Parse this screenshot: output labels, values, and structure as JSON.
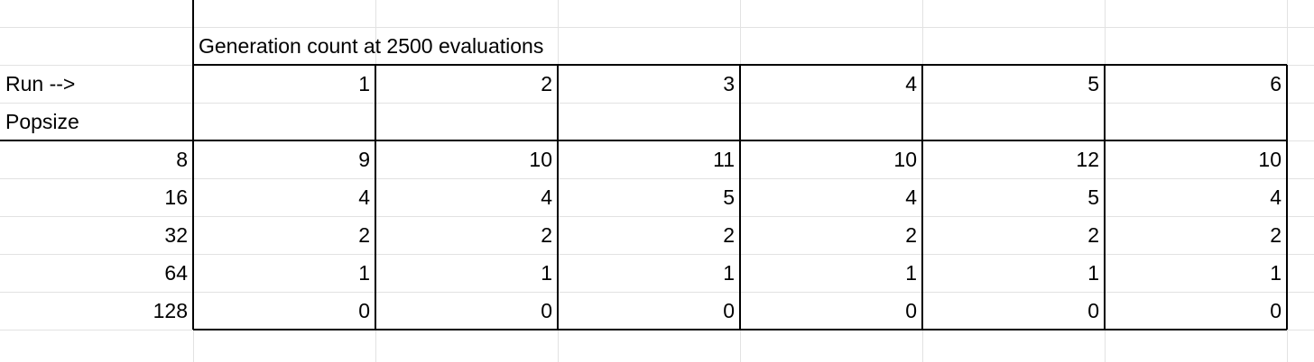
{
  "sheet": {
    "title_cell": "Generation count at 2500 evaluations",
    "row_header_run": "Run -->",
    "row_header_popsize": "Popsize",
    "runs": [
      "1",
      "2",
      "3",
      "4",
      "5",
      "6"
    ],
    "popsizes": [
      "8",
      "16",
      "32",
      "64",
      "128"
    ],
    "values": [
      [
        "9",
        "10",
        "11",
        "10",
        "12",
        "10"
      ],
      [
        "4",
        "4",
        "5",
        "4",
        "5",
        "4"
      ],
      [
        "2",
        "2",
        "2",
        "2",
        "2",
        "2"
      ],
      [
        "1",
        "1",
        "1",
        "1",
        "1",
        "1"
      ],
      [
        "0",
        "0",
        "0",
        "0",
        "0",
        "0"
      ]
    ],
    "colors": {
      "gridline": "#e2e2e2",
      "border": "#000000",
      "text": "#000000",
      "background": "#ffffff"
    }
  }
}
